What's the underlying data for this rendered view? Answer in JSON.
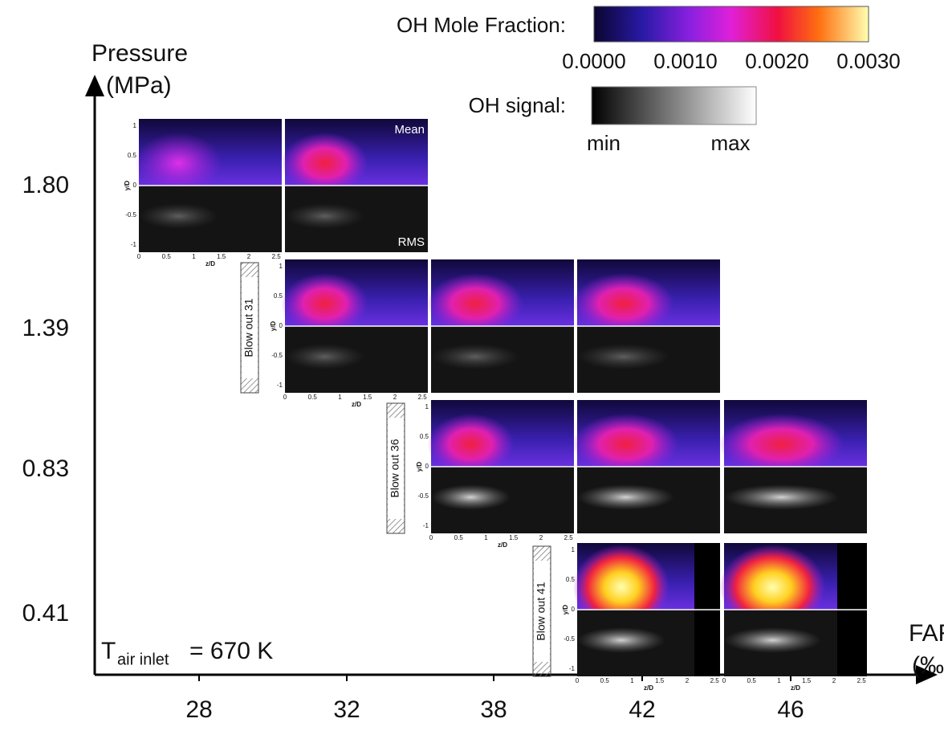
{
  "axes": {
    "y_title": "Pressure",
    "y_unit": "(MPa)",
    "x_title": "FAR",
    "x_unit": "(‰)",
    "y_labels": [
      "1.80",
      "1.39",
      "0.83",
      "0.41"
    ],
    "x_labels": [
      "28",
      "32",
      "38",
      "42",
      "46"
    ]
  },
  "condition": {
    "symbol": "T",
    "subscript": "air inlet",
    "value": "= 670 K"
  },
  "legend": {
    "oh_mole_fraction": {
      "label": "OH Mole Fraction:",
      "ticks": [
        "0.0000",
        "0.0010",
        "0.0020",
        "0.0030"
      ]
    },
    "oh_signal": {
      "label": "OH signal:",
      "min": "min",
      "max": "max"
    }
  },
  "panel": {
    "mean": "Mean",
    "rms": "RMS",
    "y_label": "y/D",
    "x_label": "z/D",
    "y_ticks": [
      "1",
      "0.5",
      "0",
      "-0.5",
      "-1"
    ],
    "x_ticks": [
      "0",
      "0.5",
      "1",
      "1.5",
      "2",
      "2.5"
    ]
  },
  "blow_out": [
    "Blow out  31",
    "Blow out  36",
    "Blow out  41"
  ]
}
